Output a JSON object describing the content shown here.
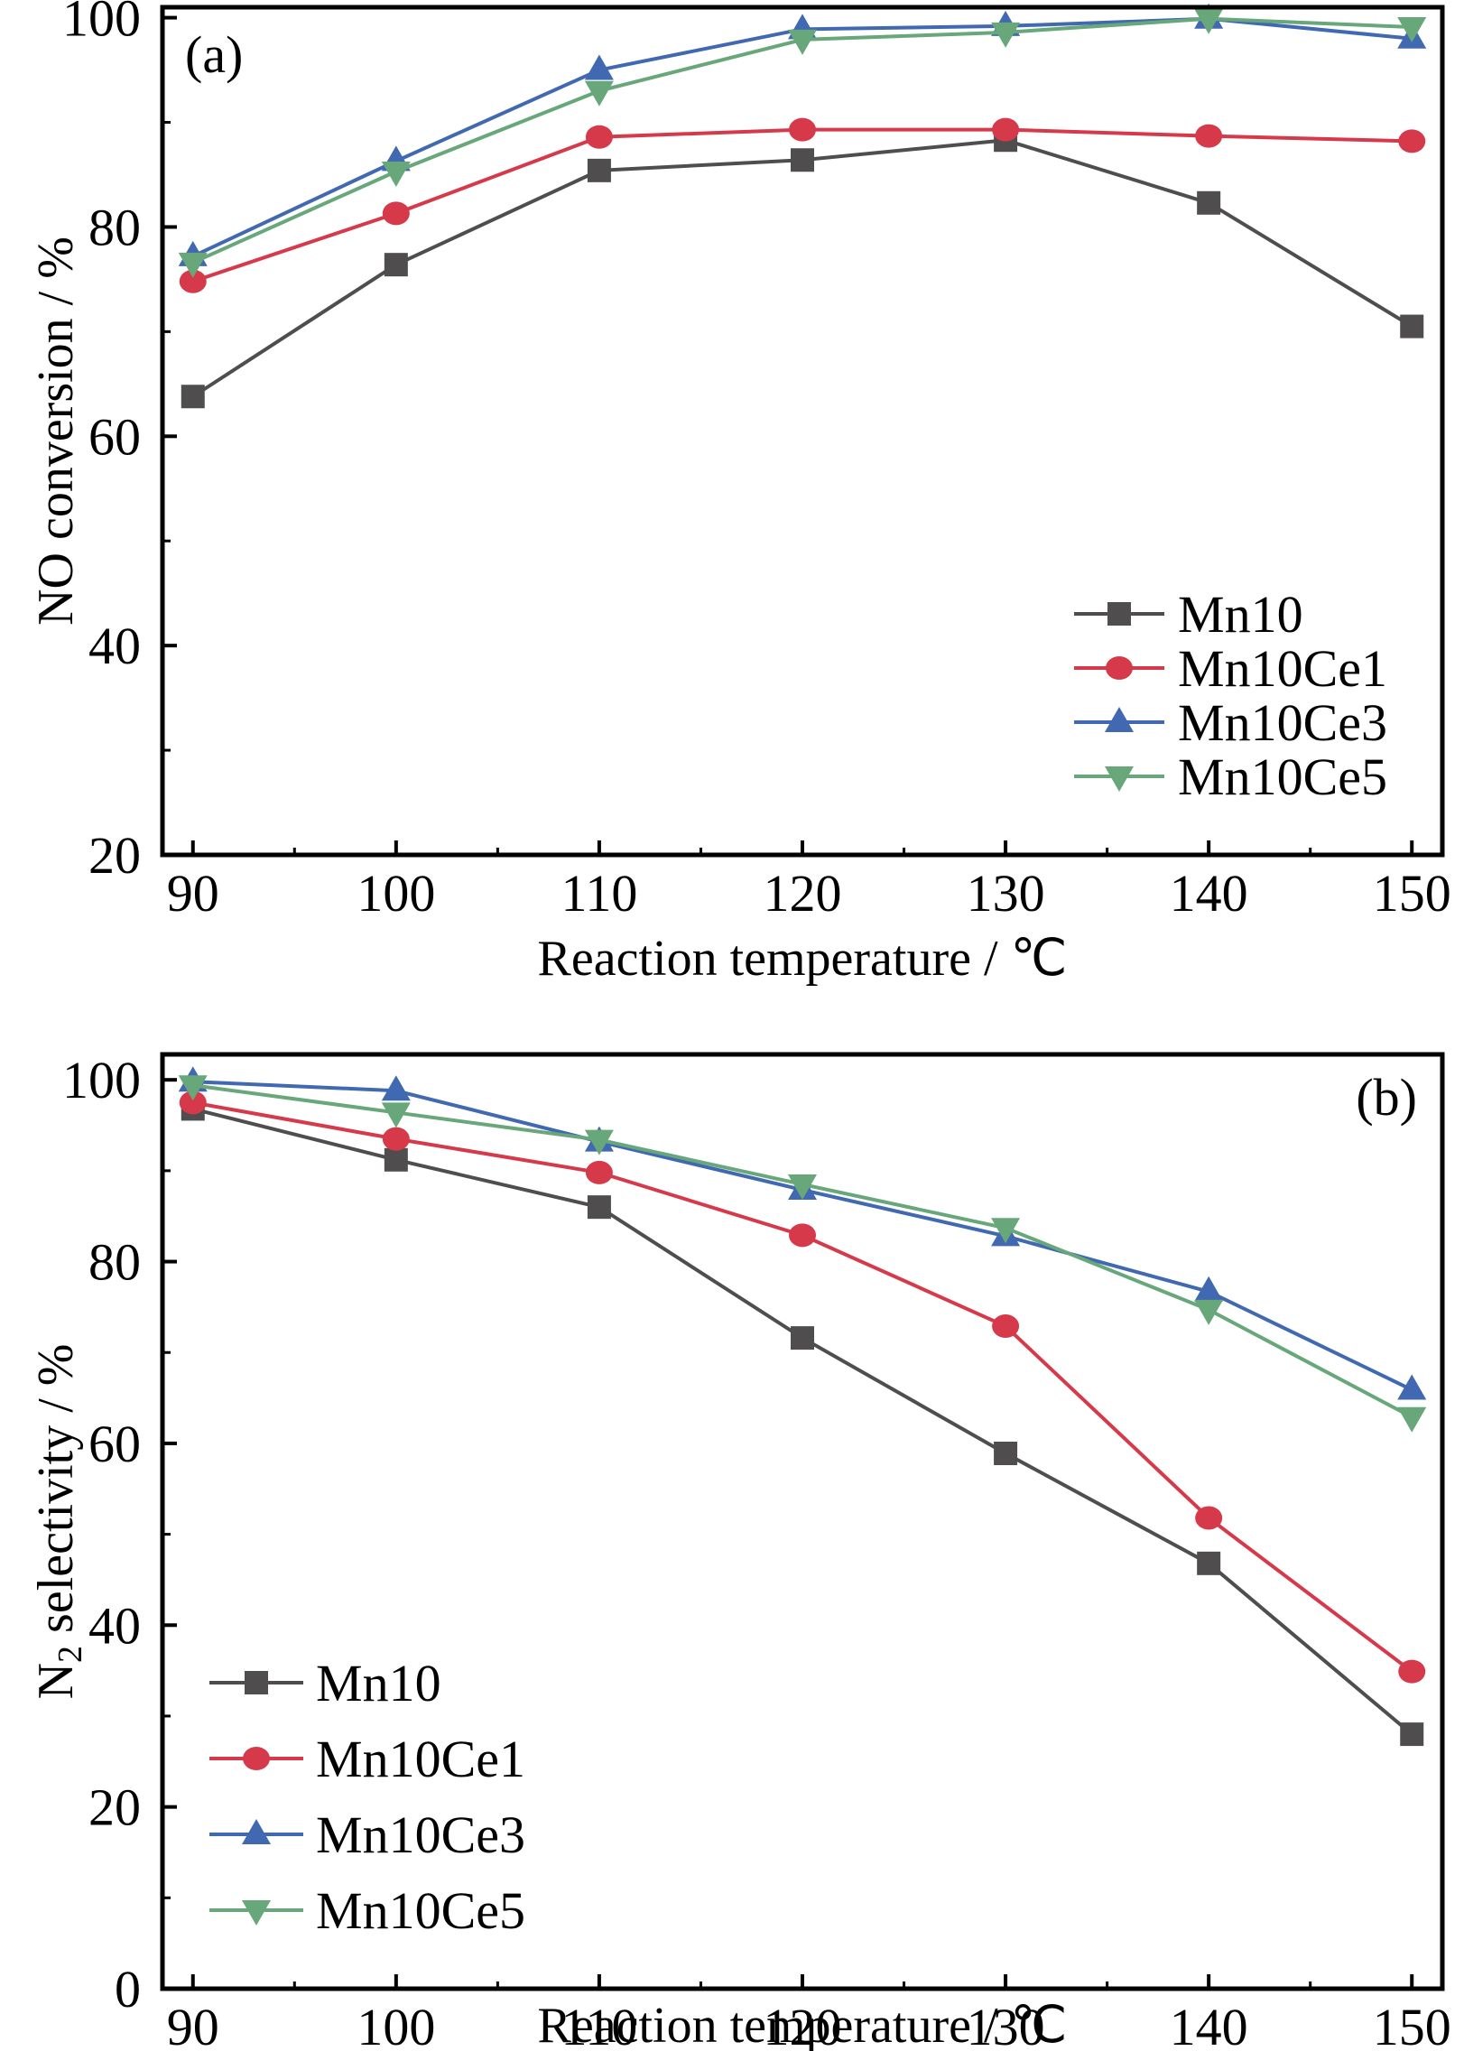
{
  "chart_data": [
    {
      "type": "line",
      "panel_label": "(a)",
      "title": "",
      "xlabel": "Reaction temperature / ℃",
      "ylabel": "NO conversion / %",
      "x": [
        90,
        100,
        110,
        120,
        130,
        140,
        150
      ],
      "xlim": [
        88.5,
        151.5
      ],
      "ylim": [
        20,
        101
      ],
      "xticks": [
        "90",
        "100",
        "110",
        "120",
        "130",
        "140",
        "150"
      ],
      "xtick_values": [
        90,
        100,
        110,
        120,
        130,
        140,
        150
      ],
      "xminor": [
        95,
        105,
        115,
        125,
        135,
        145
      ],
      "yticks": [
        "20",
        "40",
        "60",
        "80",
        "100"
      ],
      "ytick_values": [
        20,
        40,
        60,
        80,
        100
      ],
      "yminor": [
        30,
        50,
        70,
        90
      ],
      "grid": false,
      "legend_position": "bottom-right",
      "series": [
        {
          "name": "Mn10",
          "color": "#4f4d4e",
          "marker": "square",
          "values": [
            63.8,
            76.4,
            85.4,
            86.4,
            88.3,
            82.3,
            70.5
          ]
        },
        {
          "name": "Mn10Ce1",
          "color": "#d63a4a",
          "marker": "circle",
          "values": [
            74.8,
            81.3,
            88.6,
            89.3,
            89.3,
            88.7,
            88.2
          ]
        },
        {
          "name": "Mn10Ce3",
          "color": "#4169b2",
          "marker": "triangle-up",
          "values": [
            77.2,
            86.3,
            95.0,
            98.9,
            99.2,
            99.9,
            98.0
          ]
        },
        {
          "name": "Mn10Ce5",
          "color": "#67a77a",
          "marker": "triangle-down",
          "values": [
            76.6,
            85.3,
            93.0,
            97.9,
            98.6,
            99.9,
            99.1
          ]
        }
      ]
    },
    {
      "type": "line",
      "panel_label": "(b)",
      "title": "",
      "xlabel": "Reaction temperature / ℃",
      "ylabel_main": "N",
      "ylabel_sub": "2",
      "ylabel_rest": " selectivity / %",
      "x": [
        90,
        100,
        110,
        120,
        130,
        140,
        150
      ],
      "xlim": [
        88.5,
        151.5
      ],
      "ylim": [
        0,
        102.8
      ],
      "xticks": [
        "90",
        "100",
        "110",
        "120",
        "130",
        "140",
        "150"
      ],
      "xtick_values": [
        90,
        100,
        110,
        120,
        130,
        140,
        150
      ],
      "xminor": [
        95,
        105,
        115,
        125,
        135,
        145
      ],
      "yticks": [
        "0",
        "20",
        "40",
        "60",
        "80",
        "100"
      ],
      "ytick_values": [
        0,
        20,
        40,
        60,
        80,
        100
      ],
      "yminor": [
        10,
        30,
        50,
        70,
        90
      ],
      "grid": false,
      "legend_position": "bottom-left",
      "series": [
        {
          "name": "Mn10",
          "color": "#4f4d4e",
          "marker": "square",
          "values": [
            96.8,
            91.2,
            86.0,
            71.6,
            58.9,
            46.8,
            28.0
          ]
        },
        {
          "name": "Mn10Ce1",
          "color": "#d63a4a",
          "marker": "circle",
          "values": [
            97.5,
            93.5,
            89.8,
            82.9,
            72.9,
            51.8,
            34.9
          ]
        },
        {
          "name": "Mn10Ce3",
          "color": "#4169b2",
          "marker": "triangle-up",
          "values": [
            99.8,
            98.8,
            93.2,
            87.9,
            82.8,
            76.7,
            65.9
          ]
        },
        {
          "name": "Mn10Ce5",
          "color": "#67a77a",
          "marker": "triangle-down",
          "values": [
            99.4,
            96.4,
            93.4,
            88.5,
            83.7,
            74.7,
            62.9
          ]
        }
      ]
    }
  ]
}
